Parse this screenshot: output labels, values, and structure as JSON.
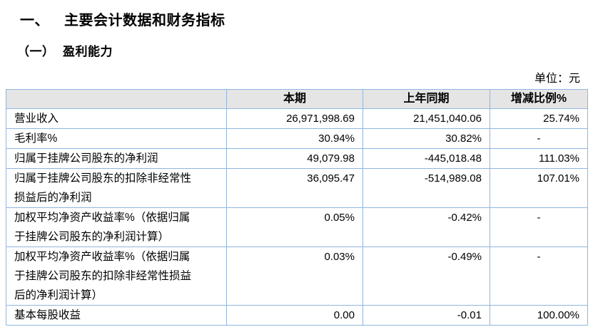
{
  "page": {
    "section_number": "一、",
    "section_title": "主要会计数据和财务指标",
    "subsection_number": "（一）",
    "subsection_title": "盈利能力",
    "unit_label": "单位：元"
  },
  "table": {
    "headers": {
      "indicator": "",
      "current": "本期",
      "prior": "上年同期",
      "change": "增减比例%"
    },
    "rows": [
      {
        "label": "营业收入",
        "current": "26,971,998.69",
        "prior": "21,451,040.06",
        "change": "25.74%"
      },
      {
        "label": "毛利率%",
        "current": "30.94%",
        "prior": "30.82%",
        "change": "-"
      },
      {
        "label": "归属于挂牌公司股东的净利润",
        "current": "49,079.98",
        "prior": "-445,018.48",
        "change": "111.03%"
      },
      {
        "label": "归属于挂牌公司股东的扣除非经常性损益后的净利润",
        "current": "36,095.47",
        "prior": "-514,989.08",
        "change": "107.01%"
      },
      {
        "label": "加权平均净资产收益率%（依据归属于挂牌公司股东的净利润计算）",
        "current": "0.05%",
        "prior": "-0.42%",
        "change": "-"
      },
      {
        "label": "加权平均净资产收益率%（依据归属于挂牌公司股东的扣除非经常性损益后的净利润计算）",
        "current": "0.03%",
        "prior": "-0.49%",
        "change": "-"
      },
      {
        "label": "基本每股收益",
        "current": "0.00",
        "prior": "-0.01",
        "change": "100.00%"
      }
    ]
  }
}
